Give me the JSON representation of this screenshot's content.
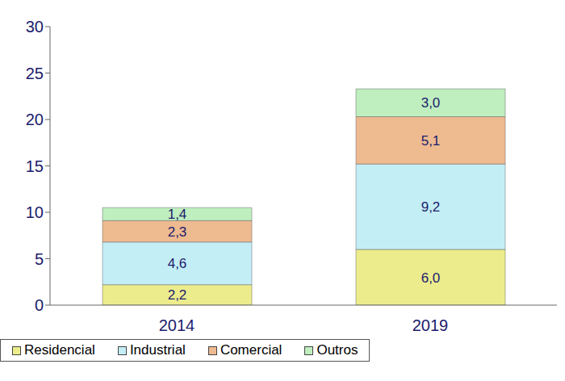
{
  "chart_data": {
    "type": "bar",
    "stacked": true,
    "data_labels": true,
    "grid": false,
    "legend": "bottom",
    "categories": [
      "2014",
      "2019"
    ],
    "ylim": [
      0,
      30
    ],
    "yticks": [
      0,
      5,
      10,
      15,
      20,
      25,
      30
    ],
    "series": [
      {
        "name": "Residencial",
        "color": "#ecec8c",
        "values": [
          2.2,
          6.0
        ],
        "value_labels": [
          "2,2",
          "6,0"
        ]
      },
      {
        "name": "Industrial",
        "color": "#c4eef6",
        "values": [
          4.6,
          9.2
        ],
        "value_labels": [
          "4,6",
          "9,2"
        ]
      },
      {
        "name": "Comercial",
        "color": "#eeba90",
        "values": [
          2.3,
          5.1
        ],
        "value_labels": [
          "2,3",
          "5,1"
        ]
      },
      {
        "name": "Outros",
        "color": "#bfeebf",
        "values": [
          1.4,
          3.0
        ],
        "value_labels": [
          "1,4",
          "3,0"
        ]
      }
    ]
  }
}
